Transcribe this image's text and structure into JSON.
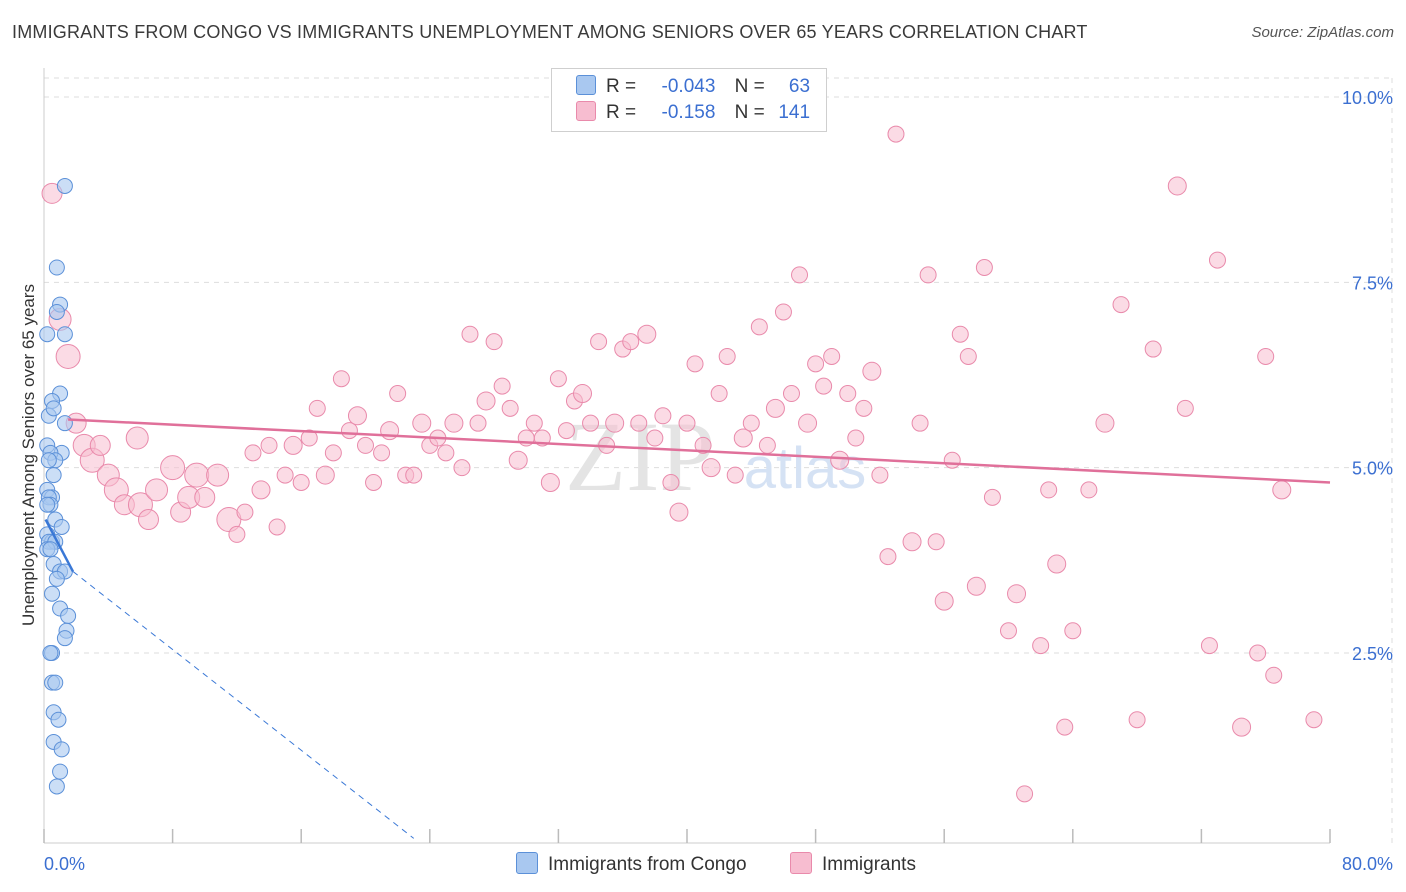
{
  "title": "IMMIGRANTS FROM CONGO VS IMMIGRANTS UNEMPLOYMENT AMONG SENIORS OVER 65 YEARS CORRELATION CHART",
  "source": "Source: ZipAtlas.com",
  "watermark": {
    "zip": "ZIP",
    "atlas": "atlas"
  },
  "legend": {
    "rows": [
      {
        "r_label": "R =",
        "r_value": "-0.043",
        "n_label": "N =",
        "n_value": "63"
      },
      {
        "r_label": "R =",
        "r_value": "-0.158",
        "n_label": "N =",
        "n_value": "141"
      }
    ]
  },
  "bottom_legend": {
    "series1": "Immigrants from Congo",
    "series2": "Immigrants"
  },
  "colors": {
    "blue_fill": "#a9c8f0",
    "blue_stroke": "#5b90d8",
    "blue_line": "#3a78d6",
    "pink_fill": "#f7bdd0",
    "pink_stroke": "#e98aab",
    "pink_line": "#e0709a",
    "axis_text": "#3b6fd1",
    "grid": "#dddddd"
  },
  "chart_data": {
    "type": "scatter",
    "title": "IMMIGRANTS FROM CONGO VS IMMIGRANTS UNEMPLOYMENT AMONG SENIORS OVER 65 YEARS CORRELATION CHART",
    "xlabel": "",
    "ylabel": "Unemployment Among Seniors over 65 years",
    "xlim": [
      0,
      80
    ],
    "ylim": [
      0,
      10.5
    ],
    "x_tick_labels": [
      "0.0%",
      "80.0%"
    ],
    "y_ticks": [
      2.5,
      5.0,
      7.5,
      10.0
    ],
    "y_tick_labels": [
      "2.5%",
      "5.0%",
      "7.5%",
      "10.0%"
    ],
    "series": [
      {
        "name": "Immigrants from Congo",
        "r": -0.043,
        "n": 63,
        "trend": {
          "x0": 0.1,
          "y0": 4.3,
          "x1": 1.8,
          "y1": 3.6
        },
        "trend_extended": {
          "x0": 1.8,
          "y0": 3.6,
          "x1": 23.0,
          "y1": 0.0
        },
        "points": [
          [
            1.3,
            8.8
          ],
          [
            0.8,
            7.7
          ],
          [
            1.0,
            7.2
          ],
          [
            0.8,
            7.1
          ],
          [
            1.3,
            6.8
          ],
          [
            0.2,
            6.8
          ],
          [
            1.0,
            6.0
          ],
          [
            0.5,
            5.9
          ],
          [
            0.3,
            5.7
          ],
          [
            0.6,
            5.8
          ],
          [
            1.3,
            5.6
          ],
          [
            0.2,
            5.3
          ],
          [
            1.1,
            5.2
          ],
          [
            0.4,
            5.2
          ],
          [
            0.7,
            5.1
          ],
          [
            0.3,
            5.1
          ],
          [
            0.6,
            4.9
          ],
          [
            0.2,
            4.7
          ],
          [
            0.5,
            4.6
          ],
          [
            0.3,
            4.6
          ],
          [
            0.4,
            4.5
          ],
          [
            0.2,
            4.5
          ],
          [
            0.7,
            4.3
          ],
          [
            1.1,
            4.2
          ],
          [
            0.2,
            4.1
          ],
          [
            0.5,
            4.0
          ],
          [
            0.3,
            4.0
          ],
          [
            0.7,
            4.0
          ],
          [
            0.2,
            3.9
          ],
          [
            0.4,
            3.9
          ],
          [
            0.6,
            3.7
          ],
          [
            1.0,
            3.6
          ],
          [
            1.3,
            3.6
          ],
          [
            0.8,
            3.5
          ],
          [
            0.5,
            3.3
          ],
          [
            1.0,
            3.1
          ],
          [
            1.5,
            3.0
          ],
          [
            1.4,
            2.8
          ],
          [
            1.3,
            2.7
          ],
          [
            0.5,
            2.5
          ],
          [
            0.4,
            2.5
          ],
          [
            0.5,
            2.1
          ],
          [
            0.7,
            2.1
          ],
          [
            0.6,
            1.7
          ],
          [
            0.9,
            1.6
          ],
          [
            0.6,
            1.3
          ],
          [
            1.1,
            1.2
          ],
          [
            1.0,
            0.9
          ],
          [
            0.8,
            0.7
          ]
        ]
      },
      {
        "name": "Immigrants",
        "r": -0.158,
        "n": 141,
        "trend": {
          "x0": 1.5,
          "y0": 5.65,
          "x1": 80.0,
          "y1": 4.8
        },
        "points": [
          [
            0.5,
            8.7
          ],
          [
            1.0,
            7.0
          ],
          [
            1.5,
            6.5
          ],
          [
            2.0,
            5.6
          ],
          [
            2.5,
            5.3
          ],
          [
            3.0,
            5.1
          ],
          [
            3.5,
            5.3
          ],
          [
            4.0,
            4.9
          ],
          [
            4.5,
            4.7
          ],
          [
            5.0,
            4.5
          ],
          [
            5.8,
            5.4
          ],
          [
            6.0,
            4.5
          ],
          [
            6.5,
            4.3
          ],
          [
            7.0,
            4.7
          ],
          [
            8.0,
            5.0
          ],
          [
            8.5,
            4.4
          ],
          [
            9.0,
            4.6
          ],
          [
            9.5,
            4.9
          ],
          [
            10.0,
            4.6
          ],
          [
            10.8,
            4.9
          ],
          [
            11.5,
            4.3
          ],
          [
            12.0,
            4.1
          ],
          [
            12.5,
            4.4
          ],
          [
            13.0,
            5.2
          ],
          [
            13.5,
            4.7
          ],
          [
            14.0,
            5.3
          ],
          [
            14.5,
            4.2
          ],
          [
            15.0,
            4.9
          ],
          [
            15.5,
            5.3
          ],
          [
            16.0,
            4.8
          ],
          [
            16.5,
            5.4
          ],
          [
            17.0,
            5.8
          ],
          [
            17.5,
            4.9
          ],
          [
            18.0,
            5.2
          ],
          [
            18.5,
            6.2
          ],
          [
            19.0,
            5.5
          ],
          [
            19.5,
            5.7
          ],
          [
            20.0,
            5.3
          ],
          [
            20.5,
            4.8
          ],
          [
            21.0,
            5.2
          ],
          [
            21.5,
            5.5
          ],
          [
            22.0,
            6.0
          ],
          [
            22.5,
            4.9
          ],
          [
            23.0,
            4.9
          ],
          [
            23.5,
            5.6
          ],
          [
            24.0,
            5.3
          ],
          [
            24.5,
            5.4
          ],
          [
            25.0,
            5.2
          ],
          [
            25.5,
            5.6
          ],
          [
            26.0,
            5.0
          ],
          [
            26.5,
            6.8
          ],
          [
            27.0,
            5.6
          ],
          [
            27.5,
            5.9
          ],
          [
            28.0,
            6.7
          ],
          [
            28.5,
            6.1
          ],
          [
            29.0,
            5.8
          ],
          [
            29.5,
            5.1
          ],
          [
            30.0,
            5.4
          ],
          [
            30.5,
            5.6
          ],
          [
            31.0,
            5.4
          ],
          [
            31.5,
            4.8
          ],
          [
            32.0,
            6.2
          ],
          [
            32.5,
            5.5
          ],
          [
            33.0,
            5.9
          ],
          [
            33.5,
            6.0
          ],
          [
            34.0,
            5.6
          ],
          [
            34.5,
            6.7
          ],
          [
            35.0,
            5.3
          ],
          [
            35.5,
            5.6
          ],
          [
            36.0,
            6.6
          ],
          [
            36.5,
            6.7
          ],
          [
            37.0,
            5.6
          ],
          [
            37.5,
            6.8
          ],
          [
            38.0,
            5.4
          ],
          [
            38.5,
            5.7
          ],
          [
            39.0,
            4.8
          ],
          [
            39.5,
            4.4
          ],
          [
            40.0,
            5.6
          ],
          [
            40.5,
            6.4
          ],
          [
            41.0,
            5.3
          ],
          [
            41.5,
            5.0
          ],
          [
            42.0,
            6.0
          ],
          [
            42.5,
            6.5
          ],
          [
            43.0,
            4.9
          ],
          [
            43.5,
            5.4
          ],
          [
            44.0,
            5.6
          ],
          [
            44.5,
            6.9
          ],
          [
            45.0,
            5.3
          ],
          [
            45.5,
            5.8
          ],
          [
            46.0,
            7.1
          ],
          [
            46.5,
            6.0
          ],
          [
            47.0,
            7.6
          ],
          [
            47.5,
            5.6
          ],
          [
            48.0,
            6.4
          ],
          [
            48.5,
            6.1
          ],
          [
            49.0,
            6.5
          ],
          [
            49.5,
            5.1
          ],
          [
            50.0,
            6.0
          ],
          [
            50.5,
            5.4
          ],
          [
            51.0,
            5.8
          ],
          [
            51.5,
            6.3
          ],
          [
            52.0,
            4.9
          ],
          [
            52.5,
            3.8
          ],
          [
            53.0,
            9.5
          ],
          [
            54.0,
            4.0
          ],
          [
            54.5,
            5.6
          ],
          [
            55.0,
            7.6
          ],
          [
            55.5,
            4.0
          ],
          [
            56.0,
            3.2
          ],
          [
            56.5,
            5.1
          ],
          [
            57.0,
            6.8
          ],
          [
            57.5,
            6.5
          ],
          [
            58.0,
            3.4
          ],
          [
            58.5,
            7.7
          ],
          [
            59.0,
            4.6
          ],
          [
            60.0,
            2.8
          ],
          [
            60.5,
            3.3
          ],
          [
            61.0,
            0.6
          ],
          [
            62.0,
            2.6
          ],
          [
            62.5,
            4.7
          ],
          [
            63.0,
            3.7
          ],
          [
            63.5,
            1.5
          ],
          [
            64.0,
            2.8
          ],
          [
            65.0,
            4.7
          ],
          [
            66.0,
            5.6
          ],
          [
            67.0,
            7.2
          ],
          [
            68.0,
            1.6
          ],
          [
            69.0,
            6.6
          ],
          [
            70.5,
            8.8
          ],
          [
            71.0,
            5.8
          ],
          [
            72.5,
            2.6
          ],
          [
            73.0,
            7.8
          ],
          [
            74.5,
            1.5
          ],
          [
            75.5,
            2.5
          ],
          [
            76.0,
            6.5
          ],
          [
            76.5,
            2.2
          ],
          [
            77.0,
            4.7
          ],
          [
            79.0,
            1.6
          ]
        ]
      }
    ]
  }
}
